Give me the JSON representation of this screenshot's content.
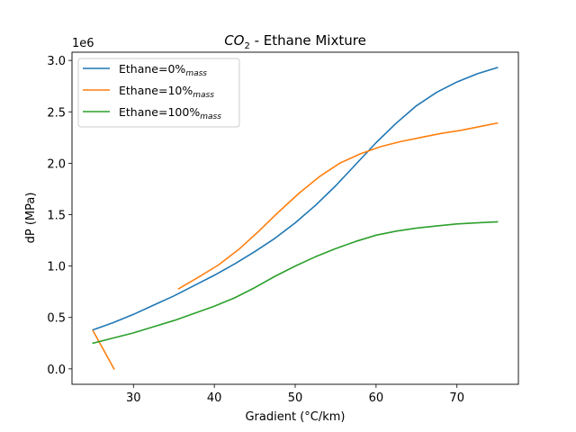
{
  "chart_data": {
    "type": "line",
    "title_main": "CO",
    "title_sub": "2",
    "title_rest": " - Ethane Mixture",
    "xlabel": "Gradient (°C/km)",
    "ylabel": "dP (MPa)",
    "y_offset_label": "1e6",
    "xlim": [
      22.4,
      77.6
    ],
    "ylim": [
      -150000,
      3080000
    ],
    "x_ticks": [
      30,
      40,
      50,
      60,
      70
    ],
    "x_tick_labels": [
      "30",
      "40",
      "50",
      "60",
      "70"
    ],
    "y_ticks": [
      0,
      500000,
      1000000,
      1500000,
      2000000,
      2500000,
      3000000
    ],
    "y_tick_labels": [
      "0.0",
      "0.5",
      "1.0",
      "1.5",
      "2.0",
      "2.5",
      "3.0"
    ],
    "grid": false,
    "legend_position": "upper-left",
    "series": [
      {
        "legend_main": "Ethane=0%",
        "legend_sub": "mass",
        "color": "#1f77b4",
        "segments": [
          {
            "x": [
              25,
              27.5,
              30,
              32.5,
              35,
              37.5,
              40,
              42.5,
              45,
              47.5,
              50,
              52.5,
              55,
              57.5,
              60,
              62.5,
              65,
              67.5,
              70,
              72.5,
              75
            ],
            "y": [
              380000,
              450000,
              530000,
              620000,
              710000,
              810000,
              910000,
              1020000,
              1140000,
              1270000,
              1420000,
              1590000,
              1780000,
              1990000,
              2200000,
              2390000,
              2560000,
              2690000,
              2790000,
              2870000,
              2930000
            ]
          }
        ]
      },
      {
        "legend_main": "Ethane=10%",
        "legend_sub": "mass",
        "color": "#ff7f0e",
        "segments": [
          {
            "x": [
              25,
              27.6
            ],
            "y": [
              370000,
              0
            ]
          },
          {
            "x": [
              35.6,
              38,
              40.5,
              43,
              45.5,
              48,
              50.5,
              53,
              55.5,
              58,
              60.5,
              63,
              65.5,
              68,
              70.5,
              73,
              75
            ],
            "y": [
              780000,
              890000,
              1010000,
              1160000,
              1340000,
              1530000,
              1710000,
              1870000,
              2000000,
              2090000,
              2160000,
              2210000,
              2250000,
              2290000,
              2320000,
              2360000,
              2390000
            ]
          }
        ]
      },
      {
        "legend_main": "Ethane=100%",
        "legend_sub": "mass",
        "color": "#2ca02c",
        "segments": [
          {
            "x": [
              25,
              27.5,
              30,
              32.5,
              35,
              37.5,
              40,
              42.5,
              45,
              47.5,
              50,
              52.5,
              55,
              57.5,
              60,
              62.5,
              65,
              67.5,
              70,
              72.5,
              75
            ],
            "y": [
              250000,
              300000,
              350000,
              410000,
              470000,
              540000,
              610000,
              690000,
              790000,
              900000,
              1000000,
              1090000,
              1170000,
              1240000,
              1300000,
              1340000,
              1370000,
              1390000,
              1410000,
              1420000,
              1430000
            ]
          }
        ]
      }
    ]
  }
}
